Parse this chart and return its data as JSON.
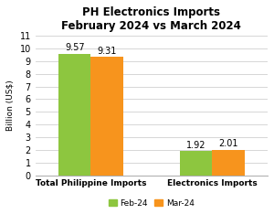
{
  "title": "PH Electronics Imports\nFebruary 2024 vs March 2024",
  "categories": [
    "Total Philippine Imports",
    "Electronics Imports"
  ],
  "feb_values": [
    9.57,
    1.92
  ],
  "mar_values": [
    9.31,
    2.01
  ],
  "feb_color": "#8DC63F",
  "mar_color": "#F7941D",
  "ylabel": "Billion (US$)",
  "ylim": [
    0,
    11
  ],
  "yticks": [
    0,
    1,
    2,
    3,
    4,
    5,
    6,
    7,
    8,
    9,
    10,
    11
  ],
  "legend_labels": [
    "Feb-24",
    "Mar-24"
  ],
  "bar_width": 0.32,
  "group_positions": [
    0.55,
    1.75
  ],
  "xlim": [
    0.0,
    2.3
  ],
  "title_fontsize": 8.5,
  "label_fontsize": 6.5,
  "tick_fontsize": 7,
  "annotation_fontsize": 7,
  "background_color": "#ffffff",
  "grid_color": "#d0d0d0"
}
